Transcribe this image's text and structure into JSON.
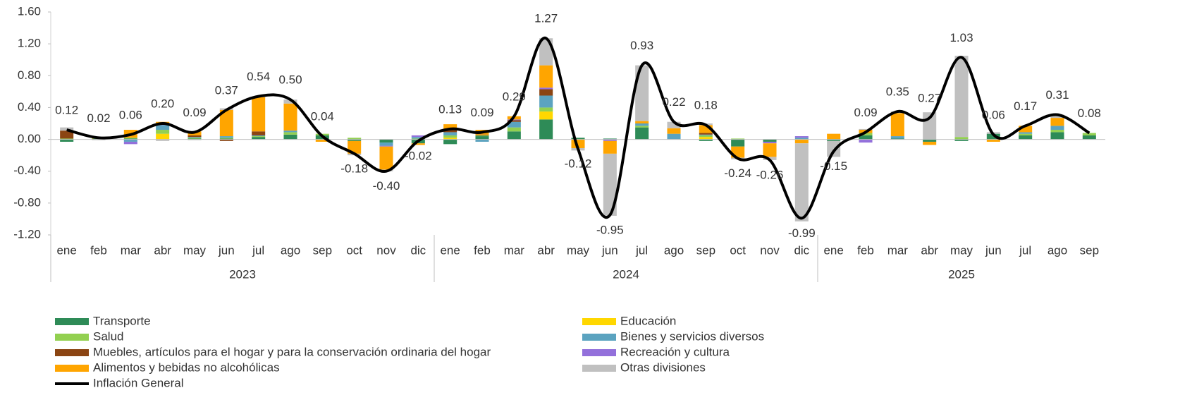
{
  "chart_data": {
    "type": "bar",
    "stacked": true,
    "categories": [
      "ene",
      "feb",
      "mar",
      "abr",
      "may",
      "jun",
      "jul",
      "ago",
      "sep",
      "oct",
      "nov",
      "dic",
      "ene",
      "feb",
      "mar",
      "abr",
      "may",
      "jun",
      "jul",
      "ago",
      "sep",
      "oct",
      "nov",
      "dic",
      "ene",
      "feb",
      "mar",
      "abr",
      "may",
      "jun",
      "jul",
      "ago",
      "sep"
    ],
    "group_labels": [
      "2023",
      "2024",
      "2025"
    ],
    "group_sizes": [
      12,
      12,
      9
    ],
    "ylim": [
      -1.2,
      1.6
    ],
    "yticks": [
      {
        "value": 1.6,
        "label": "1.60"
      },
      {
        "value": 1.2,
        "label": "1.20"
      },
      {
        "value": 0.8,
        "label": "0.80"
      },
      {
        "value": 0.4,
        "label": "0.40"
      },
      {
        "value": 0,
        "label": "0.00"
      },
      {
        "value": -0.4,
        "label": "-0.40"
      },
      {
        "value": -0.8,
        "label": "-0.80"
      },
      {
        "value": -1.2,
        "label": "-1.20"
      }
    ],
    "series": [
      {
        "name": "Transporte",
        "color": "#2e8b57",
        "values": [
          -0.03,
          0.01,
          0.01,
          0,
          0.01,
          0.01,
          0.03,
          0.06,
          0.05,
          -0.02,
          -0.04,
          -0.05,
          -0.06,
          0.04,
          0.1,
          0.25,
          0.02,
          0.01,
          0.15,
          0,
          -0.02,
          -0.09,
          -0.03,
          0,
          -0.02,
          0.05,
          0.01,
          -0.03,
          -0.02,
          0.07,
          0.05,
          0.09,
          0.05
        ]
      },
      {
        "name": "Educación",
        "color": "#ffd700",
        "values": [
          0,
          0,
          0,
          0.07,
          0,
          0,
          0,
          0,
          0,
          0,
          0,
          0,
          0.02,
          0,
          0,
          0.1,
          0,
          0,
          0,
          0,
          0.03,
          0,
          0,
          0,
          0,
          0,
          0,
          0,
          0,
          0,
          0,
          0,
          0
        ]
      },
      {
        "name": "Salud",
        "color": "#92d050",
        "values": [
          0.01,
          0,
          0.01,
          0.05,
          0.01,
          0.01,
          0.01,
          0.03,
          0.02,
          0.02,
          0,
          0.01,
          0.03,
          0.01,
          0.05,
          0.05,
          0,
          0,
          0.02,
          0,
          0.02,
          0.01,
          0,
          0,
          0,
          0.03,
          0,
          0,
          0.03,
          0,
          0.02,
          0.03,
          0.03
        ]
      },
      {
        "name": "Bienes y servicios diversos",
        "color": "#5ba3c0",
        "values": [
          0,
          0,
          -0.03,
          0.06,
          0.01,
          0.02,
          0.01,
          0.02,
          0,
          0,
          -0.04,
          0.02,
          0.04,
          -0.03,
          0.07,
          0.15,
          0,
          0,
          0.03,
          0.07,
          0.01,
          0,
          0,
          0.02,
          0,
          0,
          0.03,
          0,
          0,
          0,
          0.02,
          0.05,
          0
        ]
      },
      {
        "name": "Muebles, artículos para el hogar y para la conservación ordinaria del hogar",
        "color": "#8b4513",
        "values": [
          0.1,
          0,
          0,
          0,
          0.02,
          -0.02,
          0.05,
          0,
          0,
          0,
          0,
          0,
          0.03,
          0.01,
          0.02,
          0.08,
          0,
          0,
          0,
          0,
          0.02,
          0,
          0,
          0,
          0,
          0,
          0,
          0,
          0,
          0,
          0,
          0,
          0
        ]
      },
      {
        "name": "Recreación y cultura",
        "color": "#9370db",
        "values": [
          0,
          0,
          -0.03,
          0.02,
          0,
          0,
          0,
          0,
          0,
          0,
          -0.01,
          0.02,
          0.01,
          0,
          0.01,
          0.02,
          0,
          -0.02,
          0,
          0,
          0,
          0,
          -0.02,
          0.02,
          0,
          -0.04,
          0,
          0,
          0,
          0,
          0,
          0,
          0
        ]
      },
      {
        "name": "Alimentos y bebidas no alcohólicas",
        "color": "#ffa500",
        "values": [
          0,
          0.02,
          0.1,
          0.02,
          0.05,
          0.33,
          0.43,
          0.34,
          -0.03,
          -0.16,
          -0.29,
          -0.02,
          0.06,
          0.06,
          0.04,
          0.28,
          -0.11,
          -0.16,
          0.03,
          0.07,
          0.1,
          -0.14,
          -0.17,
          -0.05,
          0.07,
          0.04,
          0.29,
          -0.04,
          0,
          -0.03,
          0.08,
          0.1,
          0
        ]
      },
      {
        "name": "Otras divisiones",
        "color": "#c0c0c0",
        "values": [
          0.04,
          -0.01,
          0,
          -0.02,
          -0.01,
          0.02,
          0.01,
          0.05,
          0,
          -0.02,
          -0.02,
          0,
          0,
          0,
          0,
          0.34,
          -0.03,
          -0.78,
          0.7,
          0.08,
          0.02,
          -0.02,
          -0.04,
          -0.98,
          -0.2,
          0.01,
          0.02,
          0.34,
          1.02,
          0.02,
          0,
          0.04,
          0
        ]
      }
    ],
    "line": {
      "name": "Inflación General",
      "color": "#000000",
      "values": [
        0.12,
        0.02,
        0.06,
        0.2,
        0.09,
        0.37,
        0.54,
        0.5,
        0.04,
        -0.18,
        -0.4,
        -0.02,
        0.13,
        0.09,
        0.29,
        1.27,
        -0.12,
        -0.95,
        0.93,
        0.22,
        0.18,
        -0.24,
        -0.26,
        -0.99,
        -0.15,
        0.09,
        0.35,
        0.27,
        1.03,
        0.06,
        0.17,
        0.31,
        0.08
      ],
      "value_labels": [
        "0.12",
        "0.02",
        "0.06",
        "0.20",
        "0.09",
        "0.37",
        "0.54",
        "0.50",
        "0.04",
        "-0.18",
        "-0.40",
        "-0.02",
        "0.13",
        "0.09",
        "0.29",
        "1.27",
        "-0.12",
        "-0.95",
        "0.93",
        "0.22",
        "0.18",
        "-0.24",
        "-0.26",
        "-0.99",
        "-0.15",
        "0.09",
        "0.35",
        "0.27",
        "1.03",
        "0.06",
        "0.17",
        "0.31",
        "0.08"
      ]
    }
  }
}
